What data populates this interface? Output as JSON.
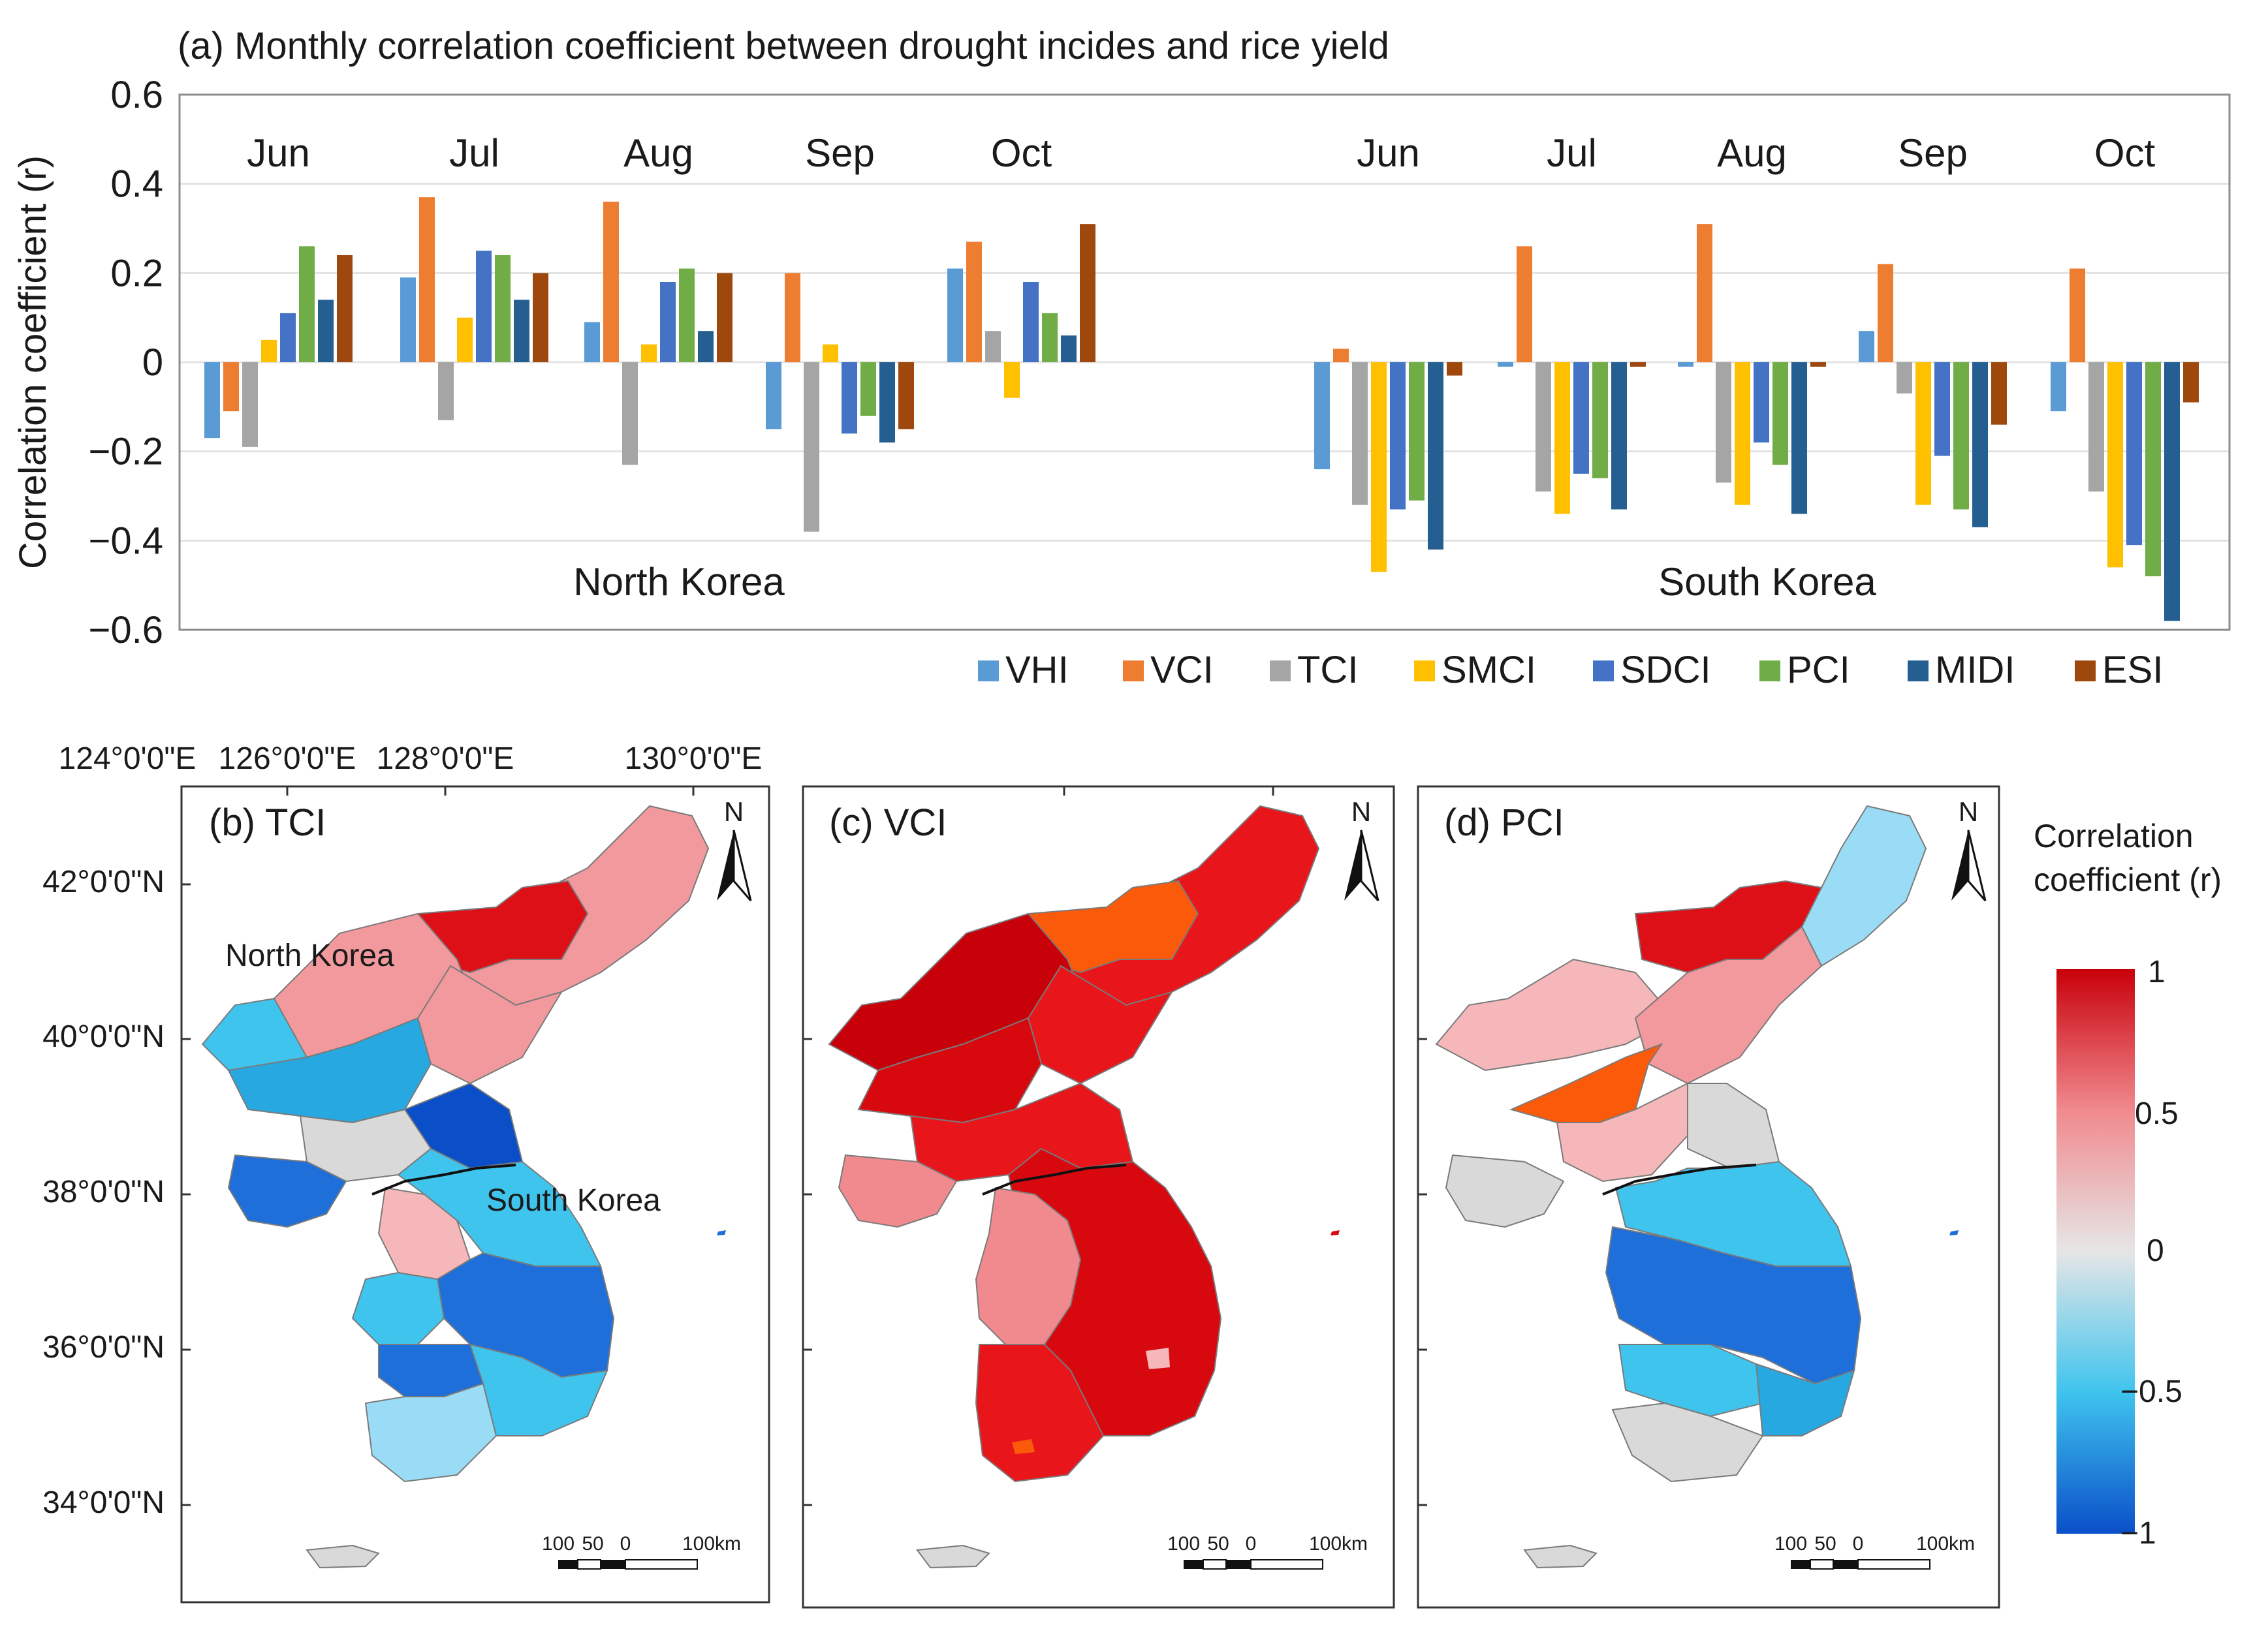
{
  "colors": {
    "VHI": "#5b9bd5",
    "VCI": "#ed7d31",
    "TCI": "#a5a5a5",
    "SMCI": "#ffc000",
    "SDCI": "#4472c4",
    "PCI": "#70ad47",
    "MIDI": "#255e91",
    "ESI": "#9e480e",
    "gridline": "#e3e3e3",
    "frame": "#8c8c8c",
    "map_null": "#d9d9d9"
  },
  "chart_data": {
    "type": "bar",
    "title": "(a) Monthly correlation coefficient between drought incides and rice yield",
    "ylabel": "Correlation coefficient (r)",
    "xlabel": "",
    "ylim": [
      -0.6,
      0.6
    ],
    "yticks": [
      0.6,
      0.4,
      0.2,
      0,
      -0.2,
      -0.4,
      -0.6
    ],
    "ytick_labels": [
      "0.6",
      "0.4",
      "0.2",
      "0",
      "−0.2",
      "−0.4",
      "−0.6"
    ],
    "grid": true,
    "legend_position": "bottom-right",
    "series_names": [
      "VHI",
      "VCI",
      "TCI",
      "SMCI",
      "SDCI",
      "PCI",
      "MIDI",
      "ESI"
    ],
    "groups": [
      {
        "region": "North Korea",
        "months": [
          {
            "label": "Jun",
            "values": [
              -0.17,
              -0.11,
              -0.19,
              0.05,
              0.11,
              0.26,
              0.14,
              0.24
            ]
          },
          {
            "label": "Jul",
            "values": [
              0.19,
              0.37,
              -0.13,
              0.1,
              0.25,
              0.24,
              0.14,
              0.2
            ]
          },
          {
            "label": "Aug",
            "values": [
              0.09,
              0.36,
              -0.23,
              0.04,
              0.18,
              0.21,
              0.07,
              0.2
            ]
          },
          {
            "label": "Sep",
            "values": [
              -0.15,
              0.2,
              -0.38,
              0.04,
              -0.16,
              -0.12,
              -0.18,
              -0.15
            ]
          },
          {
            "label": "Oct",
            "values": [
              0.21,
              0.27,
              0.07,
              -0.08,
              0.18,
              0.11,
              0.06,
              0.31
            ]
          }
        ]
      },
      {
        "region": "South Korea",
        "months": [
          {
            "label": "Jun",
            "values": [
              -0.24,
              0.03,
              -0.32,
              -0.47,
              -0.33,
              -0.31,
              -0.42,
              -0.03
            ]
          },
          {
            "label": "Jul",
            "values": [
              -0.01,
              0.26,
              -0.29,
              -0.34,
              -0.25,
              -0.26,
              -0.33,
              -0.01
            ]
          },
          {
            "label": "Aug",
            "values": [
              -0.01,
              0.31,
              -0.27,
              -0.32,
              -0.18,
              -0.23,
              -0.34,
              -0.01
            ]
          },
          {
            "label": "Sep",
            "values": [
              0.07,
              0.22,
              -0.07,
              -0.32,
              -0.21,
              -0.33,
              -0.37,
              -0.14
            ]
          },
          {
            "label": "Oct",
            "values": [
              -0.11,
              0.21,
              -0.29,
              -0.46,
              -0.41,
              -0.48,
              -0.58,
              -0.09
            ]
          }
        ]
      }
    ]
  },
  "maps": {
    "panels": [
      {
        "label": "(b) TCI"
      },
      {
        "label": "(c) VCI"
      },
      {
        "label": "(d) PCI"
      }
    ],
    "lon_labels": [
      "124°0'0\"E",
      "126°0'0\"E",
      "128°0'0\"E",
      "130°0'0\"E"
    ],
    "lat_labels": [
      "42°0'0\"N",
      "40°0'0\"N",
      "38°0'0\"N",
      "36°0'0\"N",
      "34°0'0\"N"
    ],
    "north_arrow": "N",
    "scale_labels": [
      "100",
      "50",
      "0",
      "100km"
    ],
    "region_labels": {
      "north": "North Korea",
      "south": "South Korea"
    },
    "colorbar": {
      "title_line1": "Correlation",
      "title_line2": "coefficient (r)",
      "ticks": [
        "1",
        "0.5",
        "0",
        "−0.5",
        "−1"
      ]
    }
  }
}
